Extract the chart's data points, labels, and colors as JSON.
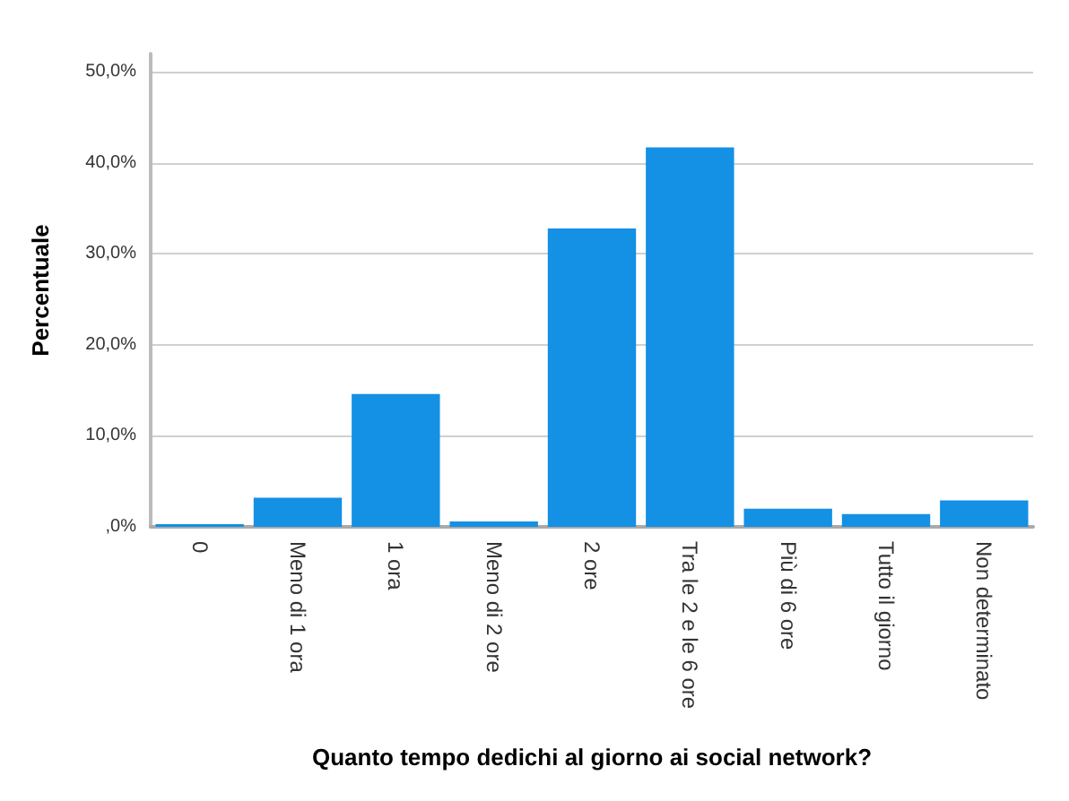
{
  "chart_data": {
    "type": "bar",
    "xlabel": "Quanto tempo dedichi al giorno ai social network?",
    "ylabel": "Percentuale",
    "categories": [
      "0",
      "Meno di 1 ora",
      "1 ora",
      "Meno di 2 ore",
      "2 ore",
      "Tra le 2 e le 6 ore",
      "Più di 6 ore",
      "Tutto il giorno",
      "Non determinato"
    ],
    "values": [
      0.3,
      3.2,
      14.6,
      0.6,
      32.8,
      41.7,
      2.0,
      1.4,
      2.9
    ],
    "color": "#1490e4",
    "ylim": [
      0,
      52
    ],
    "yticks": [
      {
        "value": 0,
        "label": ",0%"
      },
      {
        "value": 10,
        "label": "10,0%"
      },
      {
        "value": 20,
        "label": "20,0%"
      },
      {
        "value": 30,
        "label": "30,0%"
      },
      {
        "value": 40,
        "label": "40,0%"
      },
      {
        "value": 50,
        "label": "50,0%"
      }
    ],
    "grid": "y"
  }
}
